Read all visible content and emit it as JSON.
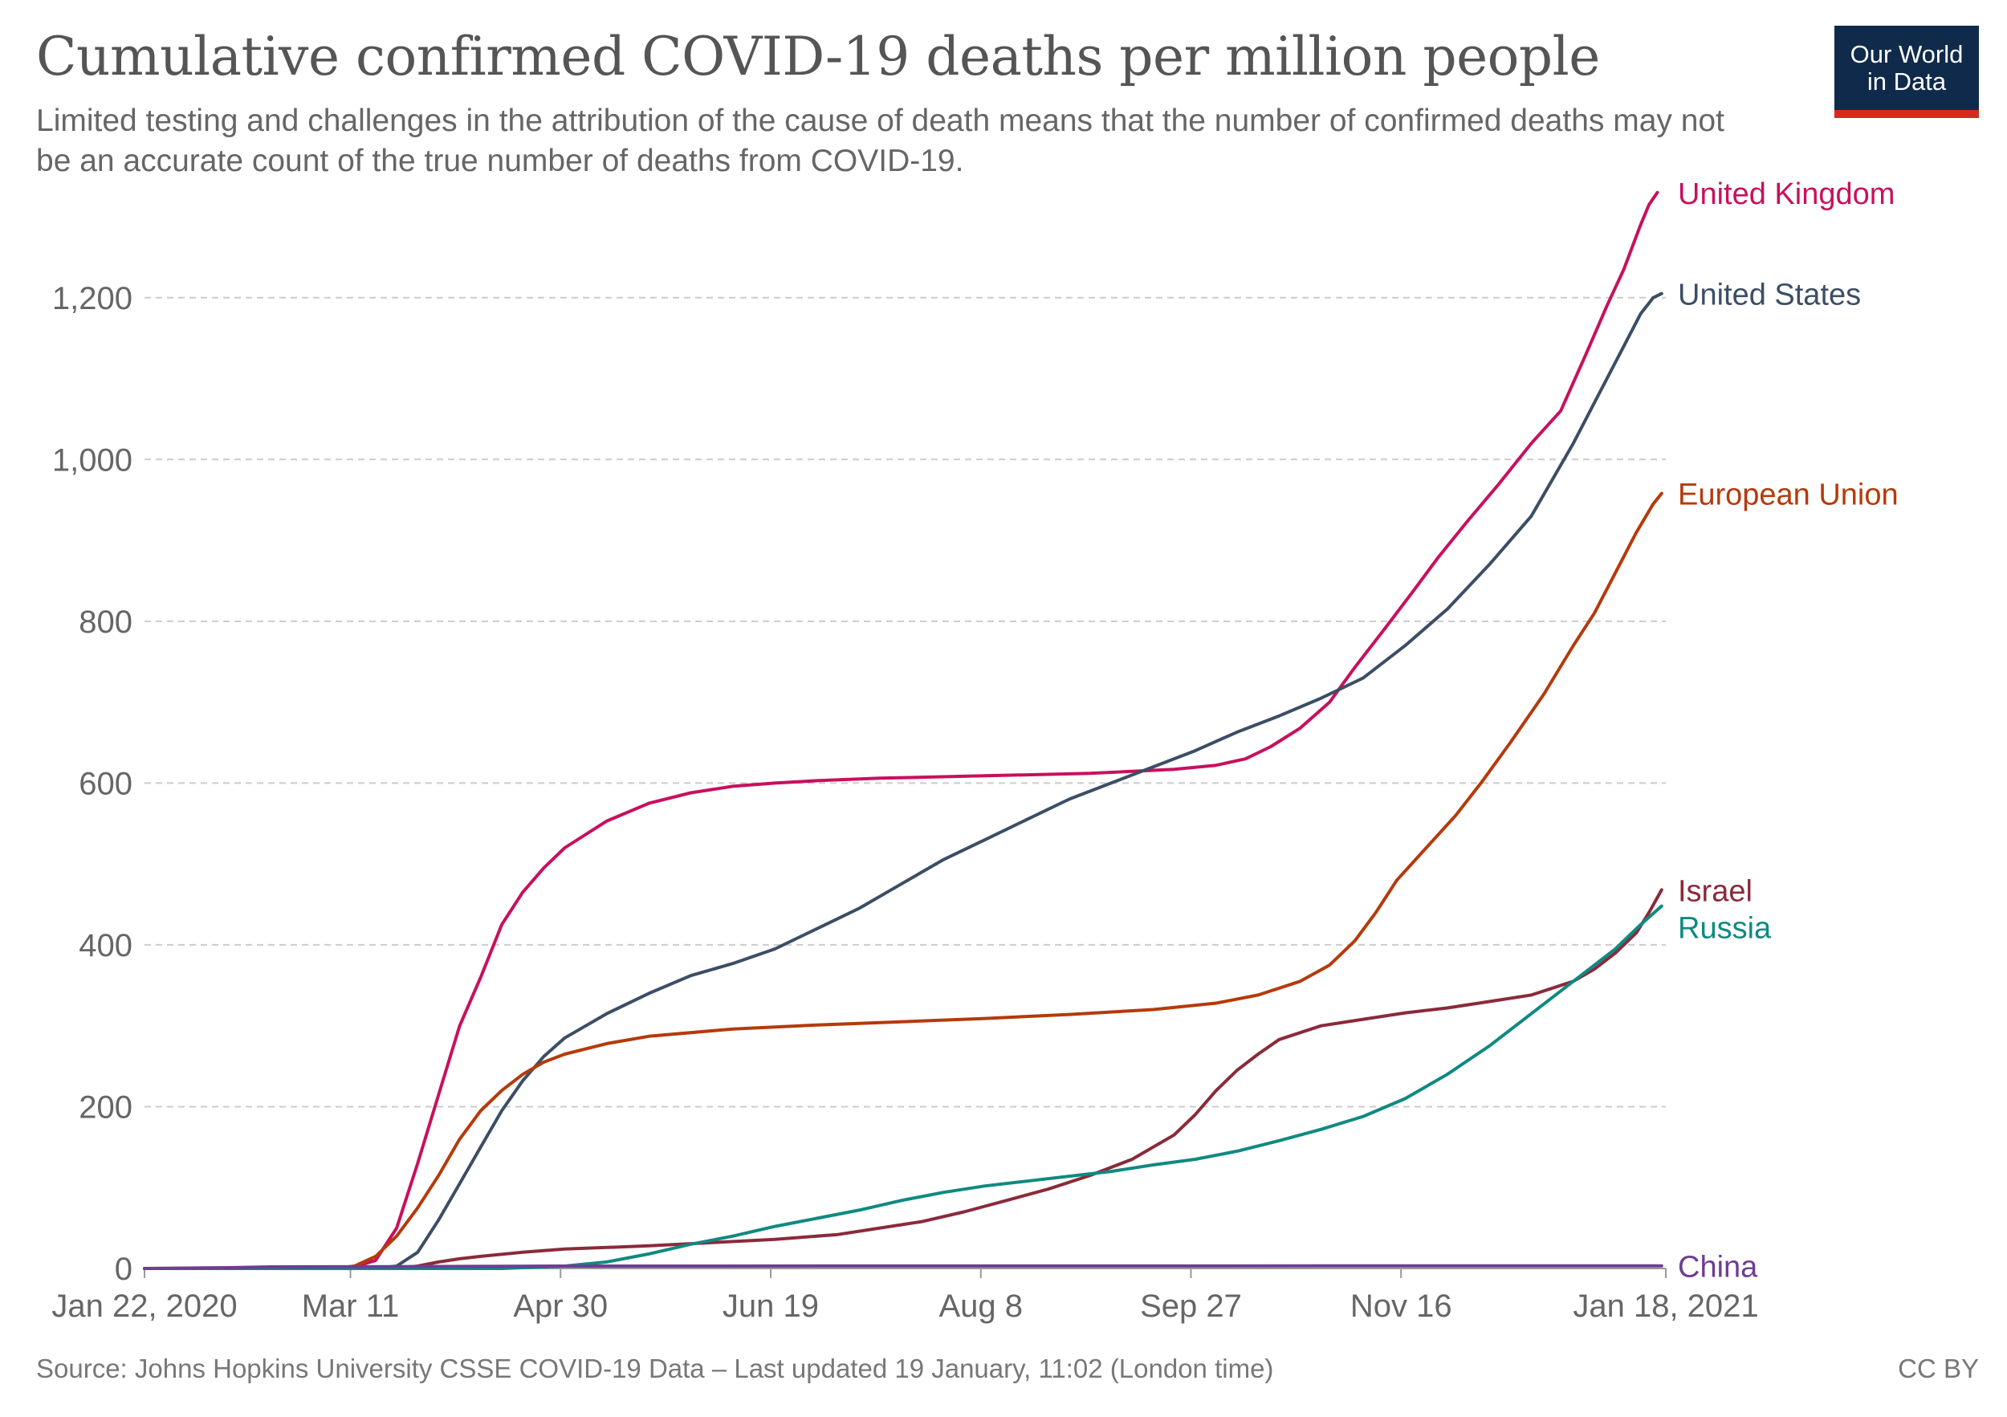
{
  "header": {
    "title": "Cumulative confirmed COVID-19 deaths per million people",
    "subtitle": "Limited testing and challenges in the attribution of the cause of death means that the number of confirmed deaths may not be an accurate count of the true number of deaths from COVID-19.",
    "logo_line1": "Our World",
    "logo_line2": "in Data"
  },
  "footer": {
    "source": "Source: Johns Hopkins University CSSE COVID-19 Data – Last updated 19 January, 11:02 (London time)",
    "license": "CC BY"
  },
  "colors": {
    "United Kingdom": "#c8105e",
    "United States": "#3c4e66",
    "European Union": "#b53a0b",
    "Israel": "#8a2a3a",
    "Russia": "#0f8a80",
    "China": "#6d3e91",
    "grid": "#cccccc",
    "axis": "#999999",
    "tick_label": "#666666"
  },
  "chart_data": {
    "type": "line",
    "title": "Cumulative confirmed COVID-19 deaths per million people",
    "xlabel": "",
    "ylabel": "",
    "x_ticks": [
      "Jan 22, 2020",
      "Mar 11",
      "Apr 30",
      "Jun 19",
      "Aug 8",
      "Sep 27",
      "Nov 16",
      "Jan 18, 2021"
    ],
    "x_tick_days": [
      0,
      49,
      99,
      149,
      199,
      249,
      299,
      362
    ],
    "x_unit": "days since Jan 22, 2020",
    "xlim": [
      0,
      362
    ],
    "y_ticks": [
      0,
      200,
      400,
      600,
      800,
      1000,
      1200
    ],
    "y_tick_labels": [
      "0",
      "200",
      "400",
      "600",
      "800",
      "1,000",
      "1,200"
    ],
    "ylim": [
      0,
      1300
    ],
    "grid": "horizontal dashed",
    "legend": "inline labels at line ends",
    "series": [
      {
        "name": "United Kingdom",
        "points": [
          [
            0,
            0
          ],
          [
            42,
            0
          ],
          [
            49,
            0.5
          ],
          [
            55,
            10
          ],
          [
            60,
            50
          ],
          [
            65,
            130
          ],
          [
            70,
            215
          ],
          [
            75,
            300
          ],
          [
            80,
            360
          ],
          [
            85,
            425
          ],
          [
            90,
            465
          ],
          [
            95,
            495
          ],
          [
            100,
            520
          ],
          [
            110,
            553
          ],
          [
            120,
            575
          ],
          [
            130,
            588
          ],
          [
            140,
            596
          ],
          [
            150,
            600
          ],
          [
            160,
            603
          ],
          [
            175,
            606
          ],
          [
            200,
            609
          ],
          [
            225,
            612
          ],
          [
            245,
            617
          ],
          [
            255,
            622
          ],
          [
            262,
            630
          ],
          [
            268,
            645
          ],
          [
            275,
            668
          ],
          [
            282,
            700
          ],
          [
            288,
            743
          ],
          [
            295,
            790
          ],
          [
            302,
            838
          ],
          [
            308,
            880
          ],
          [
            315,
            925
          ],
          [
            322,
            968
          ],
          [
            330,
            1020
          ],
          [
            337,
            1060
          ],
          [
            343,
            1130
          ],
          [
            348,
            1190
          ],
          [
            352,
            1235
          ],
          [
            356,
            1290
          ],
          [
            358,
            1315
          ],
          [
            360,
            1330
          ]
        ]
      },
      {
        "name": "United States",
        "points": [
          [
            0,
            0
          ],
          [
            55,
            0
          ],
          [
            60,
            3
          ],
          [
            65,
            20
          ],
          [
            70,
            60
          ],
          [
            75,
            105
          ],
          [
            80,
            150
          ],
          [
            85,
            195
          ],
          [
            90,
            232
          ],
          [
            95,
            262
          ],
          [
            100,
            285
          ],
          [
            105,
            300
          ],
          [
            110,
            315
          ],
          [
            120,
            340
          ],
          [
            130,
            362
          ],
          [
            140,
            377
          ],
          [
            150,
            395
          ],
          [
            160,
            420
          ],
          [
            170,
            445
          ],
          [
            180,
            475
          ],
          [
            190,
            505
          ],
          [
            200,
            530
          ],
          [
            210,
            555
          ],
          [
            220,
            580
          ],
          [
            230,
            600
          ],
          [
            240,
            620
          ],
          [
            250,
            640
          ],
          [
            260,
            663
          ],
          [
            270,
            683
          ],
          [
            280,
            705
          ],
          [
            290,
            730
          ],
          [
            300,
            770
          ],
          [
            310,
            815
          ],
          [
            320,
            870
          ],
          [
            330,
            930
          ],
          [
            340,
            1020
          ],
          [
            346,
            1080
          ],
          [
            352,
            1140
          ],
          [
            356,
            1180
          ],
          [
            359,
            1200
          ],
          [
            361,
            1205
          ]
        ]
      },
      {
        "name": "European Union",
        "points": [
          [
            0,
            0
          ],
          [
            45,
            0
          ],
          [
            50,
            3
          ],
          [
            55,
            15
          ],
          [
            60,
            40
          ],
          [
            65,
            75
          ],
          [
            70,
            115
          ],
          [
            75,
            160
          ],
          [
            80,
            195
          ],
          [
            85,
            220
          ],
          [
            90,
            240
          ],
          [
            95,
            255
          ],
          [
            100,
            265
          ],
          [
            110,
            278
          ],
          [
            120,
            287
          ],
          [
            140,
            296
          ],
          [
            160,
            301
          ],
          [
            180,
            305
          ],
          [
            200,
            309
          ],
          [
            220,
            314
          ],
          [
            240,
            320
          ],
          [
            255,
            328
          ],
          [
            265,
            338
          ],
          [
            275,
            355
          ],
          [
            282,
            375
          ],
          [
            288,
            405
          ],
          [
            293,
            440
          ],
          [
            298,
            480
          ],
          [
            305,
            520
          ],
          [
            312,
            560
          ],
          [
            318,
            600
          ],
          [
            325,
            650
          ],
          [
            333,
            710
          ],
          [
            340,
            770
          ],
          [
            345,
            810
          ],
          [
            350,
            860
          ],
          [
            355,
            910
          ],
          [
            359,
            945
          ],
          [
            361,
            958
          ]
        ]
      },
      {
        "name": "Israel",
        "points": [
          [
            0,
            0
          ],
          [
            60,
            0
          ],
          [
            65,
            3
          ],
          [
            70,
            8
          ],
          [
            75,
            12
          ],
          [
            80,
            15
          ],
          [
            90,
            20
          ],
          [
            100,
            24
          ],
          [
            120,
            28
          ],
          [
            150,
            36
          ],
          [
            165,
            42
          ],
          [
            175,
            50
          ],
          [
            185,
            58
          ],
          [
            195,
            70
          ],
          [
            205,
            84
          ],
          [
            215,
            98
          ],
          [
            225,
            115
          ],
          [
            235,
            135
          ],
          [
            245,
            165
          ],
          [
            250,
            190
          ],
          [
            255,
            220
          ],
          [
            260,
            245
          ],
          [
            265,
            265
          ],
          [
            270,
            283
          ],
          [
            280,
            300
          ],
          [
            290,
            308
          ],
          [
            300,
            316
          ],
          [
            310,
            322
          ],
          [
            320,
            330
          ],
          [
            330,
            338
          ],
          [
            340,
            355
          ],
          [
            345,
            370
          ],
          [
            350,
            390
          ],
          [
            355,
            415
          ],
          [
            358,
            440
          ],
          [
            361,
            468
          ]
        ]
      },
      {
        "name": "Russia",
        "points": [
          [
            0,
            0
          ],
          [
            85,
            0
          ],
          [
            90,
            1
          ],
          [
            100,
            3
          ],
          [
            110,
            8
          ],
          [
            120,
            18
          ],
          [
            130,
            30
          ],
          [
            140,
            40
          ],
          [
            150,
            52
          ],
          [
            160,
            62
          ],
          [
            170,
            72
          ],
          [
            180,
            84
          ],
          [
            190,
            94
          ],
          [
            200,
            102
          ],
          [
            210,
            108
          ],
          [
            220,
            114
          ],
          [
            230,
            120
          ],
          [
            240,
            128
          ],
          [
            250,
            135
          ],
          [
            260,
            145
          ],
          [
            270,
            158
          ],
          [
            280,
            172
          ],
          [
            290,
            188
          ],
          [
            300,
            210
          ],
          [
            310,
            240
          ],
          [
            320,
            275
          ],
          [
            330,
            315
          ],
          [
            340,
            355
          ],
          [
            350,
            395
          ],
          [
            356,
            425
          ],
          [
            361,
            448
          ]
        ]
      },
      {
        "name": "China",
        "points": [
          [
            0,
            0
          ],
          [
            20,
            1
          ],
          [
            30,
            2
          ],
          [
            60,
            2.3
          ],
          [
            100,
            3
          ],
          [
            361,
            3.3
          ]
        ]
      }
    ]
  }
}
